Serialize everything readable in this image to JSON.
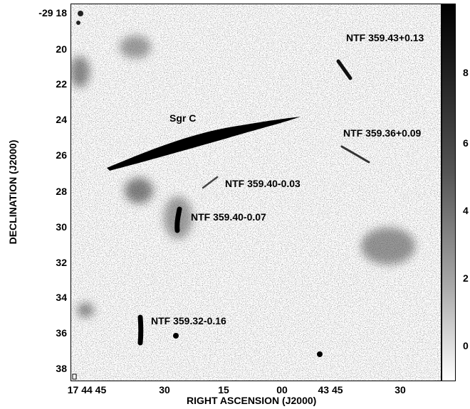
{
  "axes": {
    "xlabel": "RIGHT ASCENSION (J2000)",
    "ylabel": "DECLINATION (J2000)",
    "y_ticks": [
      "-29 18",
      "20",
      "22",
      "24",
      "26",
      "28",
      "30",
      "32",
      "34",
      "36",
      "38"
    ],
    "x_ticks": [
      "17 44 45",
      "30",
      "15",
      "00",
      "43 45",
      "30"
    ]
  },
  "colorbar": {
    "ticks": [
      "8",
      "6",
      "4",
      "2",
      "0"
    ]
  },
  "sources": {
    "ntf_359_43": "NTF 359.43+0.13",
    "ntf_359_36": "NTF 359.36+0.09",
    "sgr_c": "Sgr C",
    "ntf_359_40_003": "NTF 359.40-0.03",
    "ntf_359_40_007": "NTF 359.40-0.07",
    "ntf_359_32": "NTF 359.32-0.16"
  },
  "colors": {
    "background": "#ffffff",
    "emission": "#000000"
  }
}
